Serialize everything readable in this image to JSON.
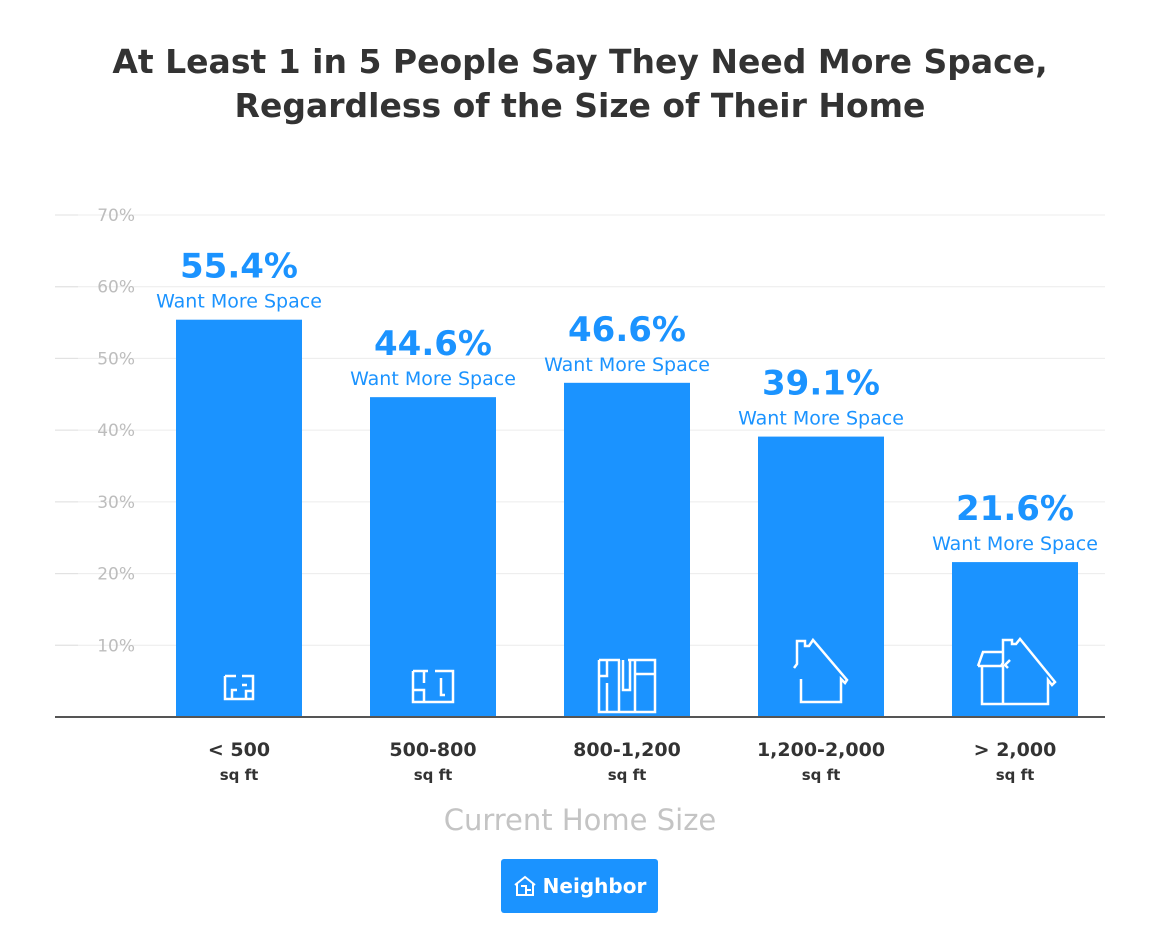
{
  "chart_data": {
    "type": "bar",
    "title_lines": [
      "At Least 1 in 5 People Say They Need More Space,",
      "Regardless of the Size of Their Home"
    ],
    "categories": [
      "< 500",
      "500-800",
      "800-1,200",
      "1,200-2,000",
      "> 2,000"
    ],
    "category_unit": "sq ft",
    "values": [
      55.4,
      44.6,
      46.6,
      39.1,
      21.6
    ],
    "data_labels": [
      "55.4%",
      "44.6%",
      "46.6%",
      "39.1%",
      "21.6%"
    ],
    "data_label_suffix": "Want More Space",
    "icons": [
      "floorplan-small-icon",
      "floorplan-medium-icon",
      "floorplan-large-icon",
      "house-icon",
      "house-with-extension-icon"
    ],
    "xlabel": "Current Home Size",
    "ylabel": "",
    "ylim": [
      0,
      70
    ],
    "yticks": [
      10,
      20,
      30,
      40,
      50,
      60,
      70
    ],
    "ytick_labels": [
      "10%",
      "20%",
      "30%",
      "40%",
      "50%",
      "60%",
      "70%"
    ],
    "grid": true,
    "bar_color": "#1b93ff"
  },
  "brand": {
    "name": "Neighbor",
    "color": "#1b93ff"
  }
}
